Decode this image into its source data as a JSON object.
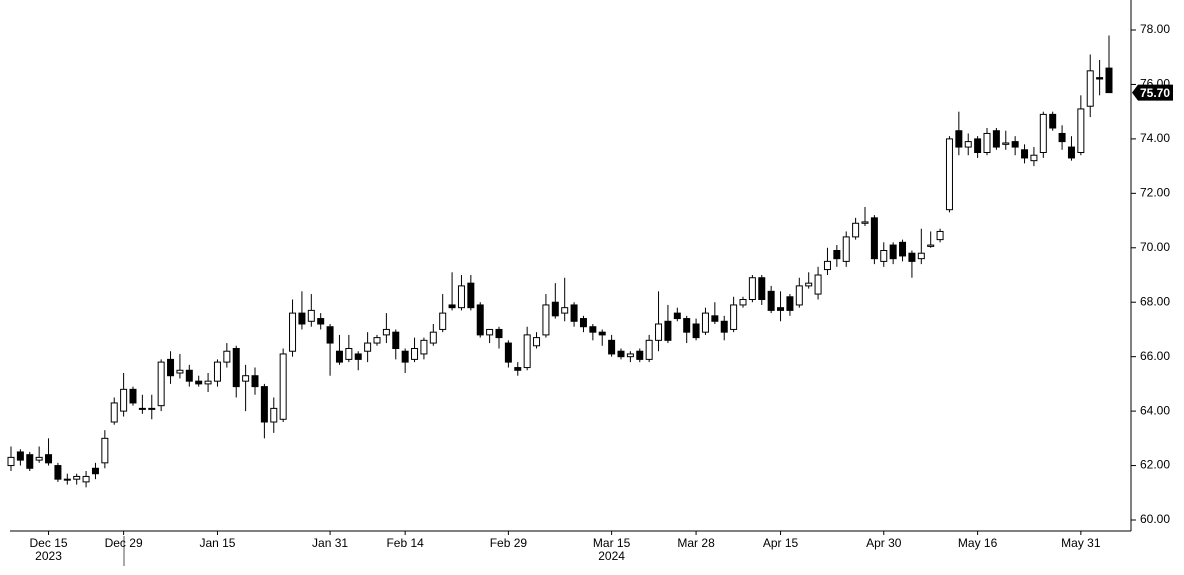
{
  "chart_data": {
    "type": "candlestick",
    "categories": [
      null,
      null,
      null,
      null,
      "Dec 15",
      null,
      null,
      null,
      null,
      null,
      null,
      null,
      "Dec 29",
      null,
      null,
      null,
      null,
      null,
      null,
      null,
      null,
      null,
      "Jan 15",
      null,
      null,
      null,
      null,
      null,
      null,
      null,
      null,
      null,
      null,
      null,
      "Jan 31",
      null,
      null,
      null,
      null,
      null,
      null,
      null,
      "Feb 14",
      null,
      null,
      null,
      null,
      null,
      null,
      null,
      null,
      null,
      null,
      "Feb 29",
      null,
      null,
      null,
      null,
      null,
      null,
      null,
      null,
      null,
      null,
      "Mar 15",
      null,
      null,
      null,
      null,
      null,
      null,
      null,
      null,
      "Mar 28",
      null,
      null,
      null,
      null,
      null,
      null,
      null,
      null,
      "Apr 15",
      null,
      null,
      null,
      null,
      null,
      null,
      null,
      null,
      null,
      null,
      "Apr 30",
      null,
      null,
      null,
      null,
      null,
      null,
      null,
      null,
      null,
      "May 16",
      null,
      null,
      null,
      null,
      null,
      null,
      null,
      null,
      null,
      null,
      "May 31",
      null,
      null,
      null
    ],
    "year_labels": [
      null,
      null,
      null,
      null,
      "2023",
      null,
      null,
      null,
      null,
      null,
      null,
      null,
      null,
      null,
      null,
      null,
      null,
      null,
      null,
      null,
      null,
      null,
      null,
      null,
      null,
      null,
      null,
      null,
      null,
      null,
      null,
      null,
      null,
      null,
      null,
      null,
      null,
      null,
      null,
      null,
      null,
      null,
      null,
      null,
      null,
      null,
      null,
      null,
      null,
      null,
      null,
      null,
      null,
      null,
      null,
      null,
      null,
      null,
      null,
      null,
      null,
      null,
      null,
      null,
      "2024",
      null,
      null,
      null,
      null,
      null,
      null,
      null,
      null,
      null,
      null,
      null,
      null,
      null,
      null,
      null,
      null,
      null,
      null,
      null,
      null,
      null,
      null,
      null,
      null,
      null,
      null,
      null,
      null,
      null,
      null,
      null,
      null,
      null,
      null,
      null,
      null,
      null,
      null,
      null,
      null,
      null,
      null,
      null,
      null,
      null,
      null,
      null,
      null,
      null,
      null,
      null,
      null,
      null
    ],
    "open": [
      62.0,
      62.5,
      62.4,
      62.2,
      62.4,
      62.0,
      61.5,
      61.5,
      61.4,
      61.9,
      62.1,
      63.6,
      64.0,
      64.8,
      64.1,
      64.1,
      64.2,
      65.9,
      65.4,
      65.5,
      65.1,
      65.0,
      65.1,
      65.8,
      66.3,
      65.1,
      65.3,
      64.9,
      63.6,
      63.7,
      66.2,
      67.6,
      67.3,
      67.4,
      67.1,
      66.2,
      65.9,
      66.1,
      66.2,
      66.5,
      66.8,
      66.9,
      66.2,
      65.9,
      66.1,
      66.5,
      67.0,
      67.9,
      67.8,
      68.7,
      67.9,
      66.8,
      67.0,
      66.5,
      65.6,
      65.6,
      66.4,
      66.8,
      68.0,
      67.6,
      67.9,
      67.4,
      67.1,
      66.9,
      66.6,
      66.2,
      66.0,
      66.2,
      65.9,
      66.6,
      67.3,
      67.6,
      67.4,
      67.2,
      66.9,
      67.5,
      67.3,
      67.0,
      67.9,
      68.1,
      68.9,
      68.4,
      67.8,
      68.2,
      67.9,
      68.6,
      68.3,
      69.2,
      69.9,
      69.5,
      70.4,
      70.9,
      71.1,
      69.5,
      70.1,
      70.2,
      69.8,
      69.6,
      70.05,
      70.3,
      71.4,
      74.3,
      73.7,
      74.0,
      73.5,
      74.3,
      73.8,
      73.9,
      73.6,
      73.2,
      73.5,
      74.9,
      74.2,
      73.7,
      73.5,
      75.2,
      76.25,
      76.6
    ],
    "high": [
      62.7,
      62.6,
      62.5,
      62.7,
      63.0,
      62.1,
      61.7,
      61.7,
      61.8,
      62.1,
      63.3,
      64.5,
      65.4,
      64.9,
      64.6,
      64.6,
      65.9,
      66.2,
      66.1,
      65.7,
      65.3,
      65.4,
      65.9,
      66.5,
      66.4,
      65.7,
      65.6,
      65.0,
      64.5,
      66.3,
      68.1,
      68.4,
      68.3,
      67.6,
      67.2,
      66.8,
      66.8,
      66.2,
      66.9,
      66.8,
      67.6,
      67.0,
      66.3,
      66.7,
      66.7,
      67.2,
      68.3,
      69.1,
      69.0,
      69.0,
      68.0,
      67.0,
      67.1,
      66.6,
      65.8,
      67.1,
      66.9,
      68.3,
      68.7,
      68.9,
      68.0,
      67.5,
      67.2,
      67.0,
      66.8,
      66.3,
      66.2,
      66.3,
      66.8,
      68.4,
      67.9,
      67.8,
      67.5,
      67.4,
      67.8,
      68.0,
      67.5,
      68.2,
      68.2,
      69.0,
      69.0,
      68.6,
      68.4,
      68.3,
      68.9,
      69.1,
      69.3,
      70.0,
      70.1,
      70.6,
      71.1,
      71.5,
      71.2,
      70.2,
      70.2,
      70.3,
      69.9,
      70.7,
      70.6,
      70.7,
      74.1,
      75.0,
      74.2,
      74.1,
      74.4,
      74.4,
      74.3,
      74.1,
      73.8,
      73.7,
      75.0,
      75.0,
      74.5,
      74.1,
      75.6,
      77.1,
      76.9,
      77.8
    ],
    "low": [
      61.8,
      62.0,
      61.8,
      62.1,
      62.0,
      61.4,
      61.3,
      61.3,
      61.2,
      61.5,
      61.9,
      63.5,
      63.8,
      64.2,
      63.9,
      63.7,
      64.0,
      65.0,
      65.2,
      64.9,
      64.9,
      64.7,
      64.9,
      65.6,
      64.5,
      64.0,
      64.6,
      63.0,
      63.2,
      63.6,
      66.0,
      67.0,
      67.1,
      67.0,
      65.3,
      65.7,
      65.8,
      65.5,
      65.8,
      66.4,
      66.5,
      65.9,
      65.4,
      65.8,
      65.9,
      66.4,
      66.9,
      67.7,
      67.7,
      67.7,
      66.7,
      66.5,
      66.3,
      65.6,
      65.3,
      65.5,
      66.3,
      66.7,
      67.4,
      67.3,
      67.1,
      66.9,
      66.6,
      66.4,
      66.0,
      65.9,
      65.8,
      65.8,
      65.8,
      66.2,
      66.5,
      67.3,
      66.5,
      66.6,
      66.8,
      67.2,
      66.6,
      66.9,
      67.8,
      68.0,
      67.9,
      67.6,
      67.3,
      67.5,
      67.8,
      68.5,
      68.1,
      69.0,
      69.3,
      69.3,
      70.3,
      70.8,
      69.4,
      69.3,
      69.4,
      69.5,
      68.9,
      69.4,
      70.0,
      70.2,
      71.3,
      73.4,
      73.4,
      73.3,
      73.4,
      73.6,
      73.6,
      73.4,
      73.1,
      73.0,
      73.3,
      74.3,
      73.6,
      73.2,
      73.4,
      74.8,
      75.6,
      75.7
    ],
    "close": [
      62.3,
      62.2,
      61.9,
      62.3,
      62.1,
      61.5,
      61.5,
      61.6,
      61.6,
      61.7,
      63.0,
      64.3,
      64.8,
      64.3,
      64.1,
      64.1,
      65.8,
      65.3,
      65.5,
      65.1,
      65.0,
      65.1,
      65.8,
      66.2,
      64.9,
      65.3,
      64.9,
      63.6,
      64.1,
      66.1,
      67.6,
      67.2,
      67.7,
      67.2,
      66.5,
      65.8,
      66.3,
      65.9,
      66.5,
      66.7,
      67.0,
      66.3,
      65.8,
      66.3,
      66.6,
      66.9,
      67.6,
      67.8,
      68.6,
      67.8,
      66.8,
      67.0,
      66.7,
      65.8,
      65.5,
      66.8,
      66.7,
      67.9,
      67.5,
      67.8,
      67.3,
      67.1,
      66.9,
      66.8,
      66.1,
      66.0,
      66.1,
      65.9,
      66.6,
      67.2,
      66.6,
      67.4,
      66.9,
      66.7,
      67.6,
      67.3,
      66.9,
      67.9,
      68.1,
      68.9,
      68.1,
      67.7,
      67.7,
      67.7,
      68.6,
      68.7,
      69.0,
      69.5,
      69.6,
      70.4,
      70.9,
      70.95,
      69.6,
      69.9,
      69.6,
      69.7,
      69.5,
      69.8,
      70.1,
      70.6,
      74.0,
      73.7,
      73.9,
      73.5,
      74.2,
      73.7,
      73.85,
      73.7,
      73.3,
      73.4,
      74.9,
      74.4,
      73.9,
      73.3,
      75.1,
      76.5,
      76.2,
      75.7
    ],
    "up_color": "#ffffff",
    "down_color": "#000000",
    "last_value": 75.7,
    "last_value_label": "75.70",
    "ylim": [
      60,
      78.5
    ],
    "yticks": [
      {
        "value": 60,
        "label": "60.00"
      },
      {
        "value": 62,
        "label": "62.00"
      },
      {
        "value": 64,
        "label": "64.00"
      },
      {
        "value": 66,
        "label": "66.00"
      },
      {
        "value": 68,
        "label": "68.00"
      },
      {
        "value": 70,
        "label": "70.00"
      },
      {
        "value": 72,
        "label": "72.00"
      },
      {
        "value": 74,
        "label": "74.00"
      },
      {
        "value": 76,
        "label": "76.00"
      },
      {
        "value": 78,
        "label": "78.00"
      }
    ],
    "grid": false
  }
}
